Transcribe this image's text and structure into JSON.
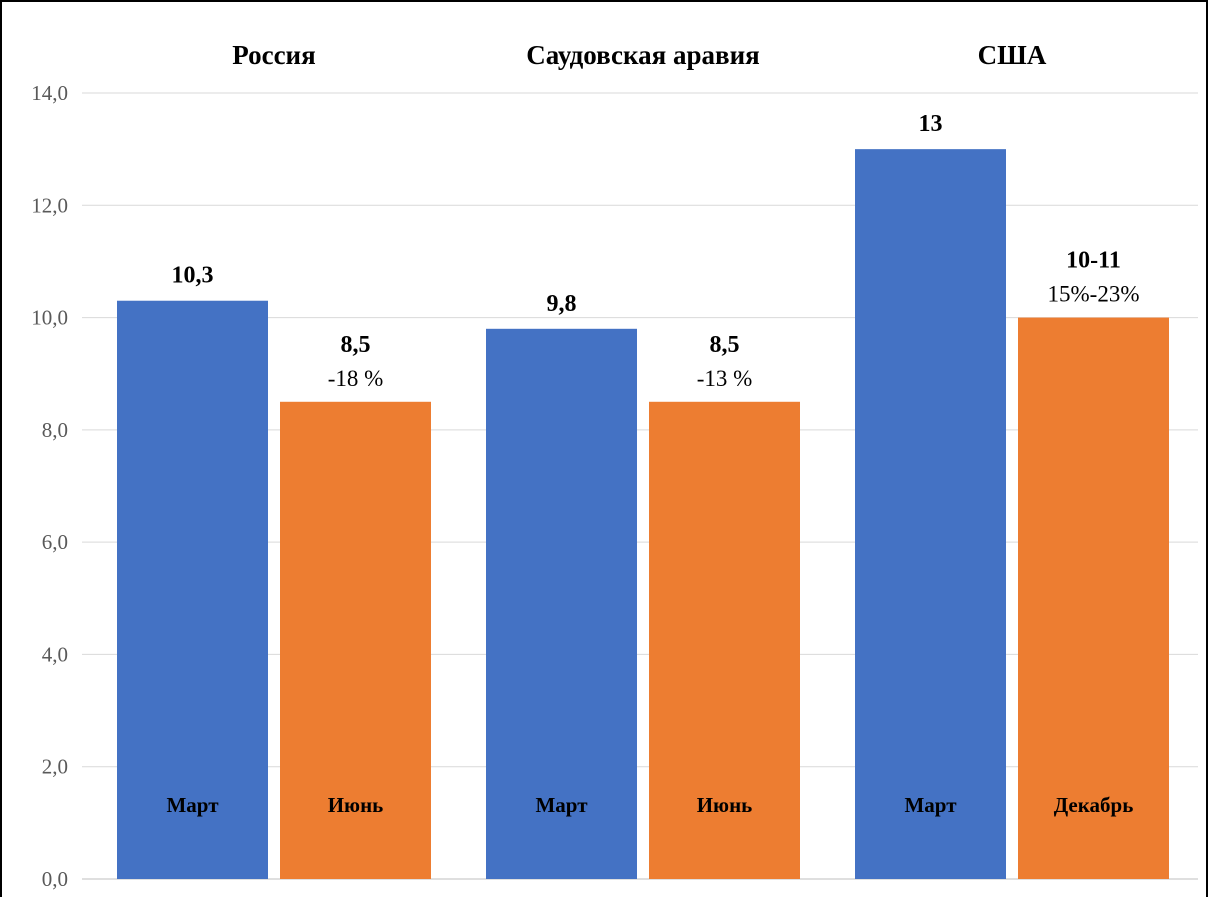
{
  "chart_data": {
    "type": "bar",
    "ylim": [
      0,
      14
    ],
    "yticks": [
      "0,0",
      "2,0",
      "4,0",
      "6,0",
      "8,0",
      "10,0",
      "12,0",
      "14,0"
    ],
    "grid": true,
    "colors": {
      "blue": "#4472C4",
      "orange": "#ED7D31"
    },
    "groups": [
      {
        "title": "Россия",
        "bars": [
          {
            "label": "Март",
            "value": 10.3,
            "value_label": "10,3",
            "sub_label": "",
            "color": "blue"
          },
          {
            "label": "Июнь",
            "value": 8.5,
            "value_label": "8,5",
            "sub_label": "-18 %",
            "color": "orange"
          }
        ]
      },
      {
        "title": "Саудовская аравия",
        "bars": [
          {
            "label": "Март",
            "value": 9.8,
            "value_label": "9,8",
            "sub_label": "",
            "color": "blue"
          },
          {
            "label": "Июнь",
            "value": 8.5,
            "value_label": "8,5",
            "sub_label": "-13 %",
            "color": "orange"
          }
        ]
      },
      {
        "title": "США",
        "bars": [
          {
            "label": "Март",
            "value": 13,
            "value_label": "13",
            "sub_label": "",
            "color": "blue"
          },
          {
            "label": "Декабрь",
            "value": 10,
            "value_label": "10-11",
            "sub_label": "15%-23%",
            "color": "orange"
          }
        ]
      }
    ]
  }
}
